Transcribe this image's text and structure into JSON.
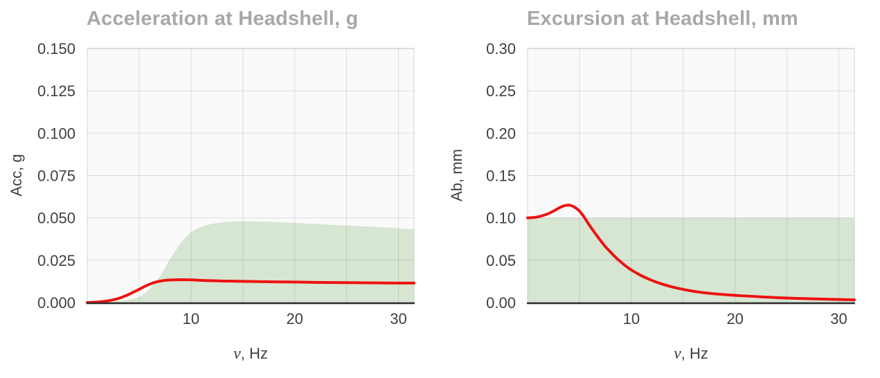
{
  "style": {
    "page_bg": "#ffffff",
    "plot_bg": "#fafafa",
    "title_color": "#a8a8a8",
    "tick_color": "#3f3f3f",
    "grid_color": "rgba(0,0,0,0.115)",
    "border_color": "rgba(0,0,0,0.15)",
    "axis_color": "#2e2e2e",
    "line_color": "#ee1111",
    "band_color": "#d6e6d2"
  },
  "chart_data": [
    {
      "type": "line",
      "title": "Acceleration at Headshell, g",
      "xlabel": {
        "symbol": "ν",
        "rest": ", Hz"
      },
      "ylabel": "Acc, g",
      "xlim": [
        0,
        31.5
      ],
      "ylim": [
        0,
        0.15
      ],
      "grid": true,
      "legend": "none",
      "xgrid": [
        5,
        10,
        15,
        20,
        25,
        30
      ],
      "xticks": [
        10,
        20,
        30
      ],
      "xtick_labels": [
        "10",
        "20",
        "30"
      ],
      "yticks": [
        0,
        0.025,
        0.05,
        0.075,
        0.1,
        0.125,
        0.15
      ],
      "ytick_labels": [
        "0.000",
        "0.025",
        "0.050",
        "0.075",
        "0.100",
        "0.125",
        "0.150"
      ],
      "series": [
        {
          "name": "reference-band",
          "kind": "area",
          "color": "#d6e6d2",
          "x": [
            0,
            1,
            2,
            3,
            4,
            4.5,
            5,
            5.5,
            6,
            6.5,
            7,
            7.5,
            8,
            8.5,
            9,
            9.5,
            10,
            10.5,
            11,
            11.5,
            12,
            13,
            14,
            15,
            16,
            17,
            18,
            20,
            22,
            24,
            26,
            28,
            30,
            31.5
          ],
          "y": [
            0,
            0.0001,
            0.0003,
            0.0008,
            0.0017,
            0.0024,
            0.0033,
            0.0052,
            0.008,
            0.0115,
            0.0155,
            0.0205,
            0.026,
            0.0305,
            0.035,
            0.0385,
            0.0415,
            0.0432,
            0.0447,
            0.0457,
            0.0464,
            0.0473,
            0.0478,
            0.048,
            0.0479,
            0.0477,
            0.0475,
            0.047,
            0.0464,
            0.0458,
            0.0452,
            0.0446,
            0.0438,
            0.0434
          ]
        },
        {
          "name": "headshell-acceleration",
          "kind": "line",
          "color": "#ee1111",
          "width": 4,
          "x": [
            0,
            0.5,
            1,
            1.5,
            2,
            2.5,
            3,
            3.5,
            4,
            4.5,
            5,
            5.5,
            6,
            6.5,
            7,
            7.5,
            8,
            8.5,
            9,
            10,
            11,
            12,
            13,
            14,
            16,
            18,
            20,
            22,
            24,
            26,
            28,
            30,
            31.5
          ],
          "y": [
            0,
            0.0001,
            0.0003,
            0.0006,
            0.001,
            0.0016,
            0.0024,
            0.0035,
            0.0048,
            0.0063,
            0.0078,
            0.0094,
            0.0108,
            0.0119,
            0.0126,
            0.0131,
            0.0133,
            0.0134,
            0.0135,
            0.0134,
            0.0131,
            0.0129,
            0.0127,
            0.0126,
            0.0124,
            0.0122,
            0.0121,
            0.0119,
            0.0118,
            0.0117,
            0.0116,
            0.0115,
            0.0115
          ]
        }
      ]
    },
    {
      "type": "line",
      "title": "Excursion at Headshell, mm",
      "xlabel": {
        "symbol": "ν",
        "rest": ", Hz"
      },
      "ylabel": "Ab, mm",
      "xlim": [
        0,
        31.5
      ],
      "ylim": [
        0,
        0.3
      ],
      "grid": true,
      "legend": "none",
      "xgrid": [
        5,
        10,
        15,
        20,
        25,
        30
      ],
      "xticks": [
        10,
        20,
        30
      ],
      "xtick_labels": [
        "10",
        "20",
        "30"
      ],
      "yticks": [
        0,
        0.05,
        0.1,
        0.15,
        0.2,
        0.25,
        0.3
      ],
      "ytick_labels": [
        "0.00",
        "0.05",
        "0.10",
        "0.15",
        "0.20",
        "0.25",
        "0.30"
      ],
      "series": [
        {
          "name": "reference-band",
          "kind": "area",
          "color": "#d6e6d2",
          "x": [
            0,
            31.5
          ],
          "y": [
            0.1,
            0.1
          ]
        },
        {
          "name": "headshell-excursion",
          "kind": "line",
          "color": "#ee1111",
          "width": 4,
          "x": [
            0,
            0.5,
            1,
            1.5,
            2,
            2.5,
            3,
            3.5,
            4,
            4.5,
            5,
            5.5,
            6,
            6.5,
            7,
            7.5,
            8,
            8.5,
            9,
            9.5,
            10,
            11,
            12,
            13,
            14,
            15,
            16,
            17,
            18,
            20,
            22,
            25,
            28,
            31.5
          ],
          "y": [
            0.1,
            0.1003,
            0.1012,
            0.1028,
            0.105,
            0.108,
            0.1115,
            0.1142,
            0.115,
            0.1128,
            0.108,
            0.1,
            0.0905,
            0.082,
            0.0737,
            0.066,
            0.0595,
            0.0532,
            0.0478,
            0.0428,
            0.0385,
            0.0315,
            0.026,
            0.0217,
            0.0182,
            0.0155,
            0.0133,
            0.0116,
            0.0103,
            0.0085,
            0.0071,
            0.0053,
            0.0042,
            0.0032
          ]
        }
      ]
    }
  ]
}
